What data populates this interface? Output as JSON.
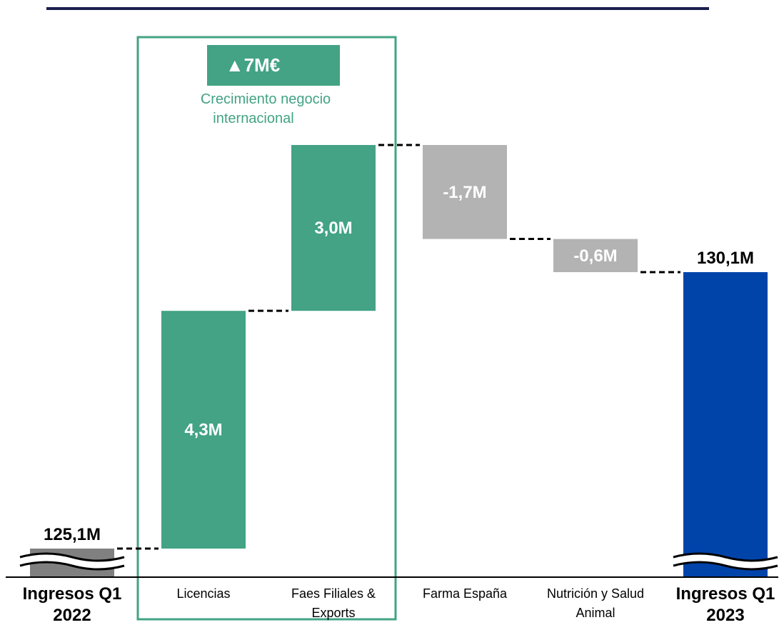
{
  "colors": {
    "positive": "#43a384",
    "negative": "#b3b3b3",
    "total_end": "#0044aa",
    "total_start": "#808080",
    "top_rule": "#1a1f4e",
    "highlight_border": "#43a384"
  },
  "callout": {
    "value": "▲7M€",
    "subtitle_line1": "Crecimiento negocio",
    "subtitle_line2": "internacional"
  },
  "chart_data": {
    "type": "bar",
    "subtype": "waterfall",
    "axis_break": true,
    "steps": [
      {
        "category_lines": [
          "Ingresos Q1",
          "2022"
        ],
        "kind": "total",
        "value": 125.1,
        "label": "125,1M",
        "bold_category": true
      },
      {
        "category_lines": [
          "Licencias"
        ],
        "kind": "delta",
        "value": 4.3,
        "label": "4,3M"
      },
      {
        "category_lines": [
          "Faes Filiales &",
          "Exports"
        ],
        "kind": "delta",
        "value": 3.0,
        "label": "3,0M"
      },
      {
        "category_lines": [
          "Farma España"
        ],
        "kind": "delta",
        "value": -1.7,
        "label": "-1,7M"
      },
      {
        "category_lines": [
          "Nutrición y Salud",
          "Animal"
        ],
        "kind": "delta",
        "value": -0.6,
        "label": "-0,6M"
      },
      {
        "category_lines": [
          "Ingresos Q1",
          "2023"
        ],
        "kind": "total",
        "value": 130.1,
        "label": "130,1M",
        "bold_category": true
      }
    ],
    "highlight_group": [
      1,
      2
    ]
  }
}
